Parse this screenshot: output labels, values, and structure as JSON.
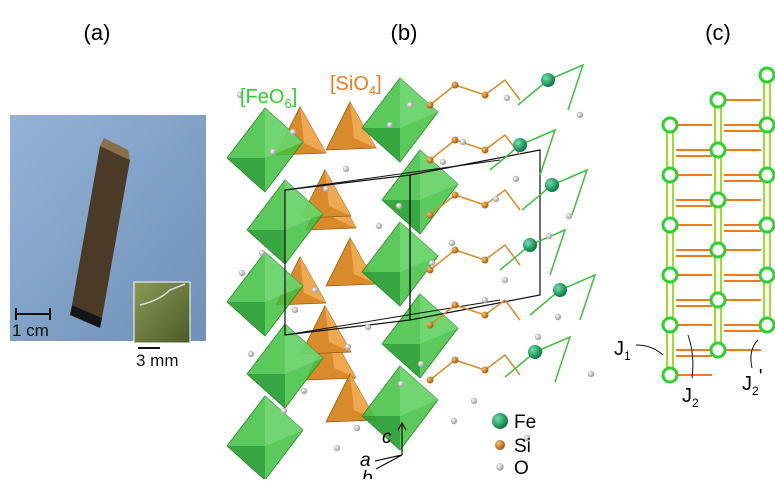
{
  "panels": {
    "a": {
      "label": "(a)",
      "scale_large": "1 cm",
      "scale_small": "3 mm"
    },
    "b": {
      "label": "(b)",
      "feo": {
        "text": "[FeO",
        "sub": "6",
        "end": "]"
      },
      "sio": {
        "text": "[SiO",
        "sub": "4",
        "end": "]"
      },
      "legend": [
        "Fe",
        "Si",
        "O"
      ],
      "axes": [
        "c",
        "a",
        "b"
      ]
    },
    "c": {
      "label": "(c)",
      "j1": {
        "text": "J",
        "sub": "1"
      },
      "j2": {
        "text": "J",
        "sub": "2"
      },
      "j2p": {
        "text": "J",
        "sub": "2",
        "prime": "'"
      }
    }
  }
}
